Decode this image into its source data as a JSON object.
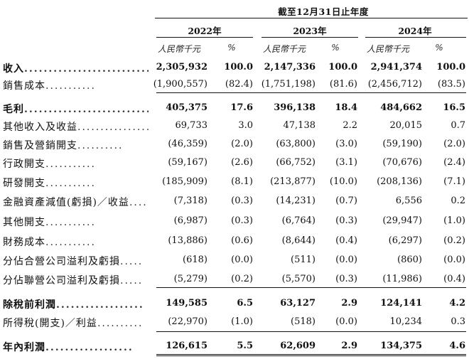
{
  "header": {
    "period": "截至12月31日止年度",
    "years": [
      "2022年",
      "2023年",
      "2024年"
    ],
    "unit": "人民幣千元",
    "pct": "%"
  },
  "rows": [
    {
      "label": "收入",
      "dots": "..........................",
      "bold": true,
      "v": [
        "2,305,932",
        "100.0",
        "2,147,336",
        "100.0",
        "2,941,374",
        "100.0"
      ]
    },
    {
      "label": "銷售成本",
      "dots": "...........",
      "bold": false,
      "v": [
        "(1,900,557)",
        "(82.4)",
        "(1,751,198)",
        "(81.6)",
        "(2,456,712)",
        "(83.5)"
      ]
    },
    {
      "label": "毛利",
      "dots": "..........................",
      "bold": true,
      "v": [
        "405,375",
        "17.6",
        "396,138",
        "18.4",
        "484,662",
        "16.5"
      ]
    },
    {
      "label": "其他收入及收益",
      "dots": "................",
      "bold": false,
      "v": [
        "69,733",
        "3.0",
        "47,138",
        "2.2",
        "20,015",
        "0.7"
      ]
    },
    {
      "label": "銷售及營銷開支",
      "dots": "..........",
      "bold": false,
      "v": [
        "(46,359)",
        "(2.0)",
        "(63,800)",
        "(3.0)",
        "(59,190)",
        "(2.0)"
      ]
    },
    {
      "label": "行政開支",
      "dots": "...........",
      "bold": false,
      "v": [
        "(59,167)",
        "(2.6)",
        "(66,752)",
        "(3.1)",
        "(70,676)",
        "(2.4)"
      ]
    },
    {
      "label": "研發開支",
      "dots": "...........",
      "bold": false,
      "v": [
        "(185,909)",
        "(8.1)",
        "(213,877)",
        "(10.0)",
        "(208,136)",
        "(7.1)"
      ]
    },
    {
      "label": "金融資產減值(虧損)／收益",
      "dots": "....",
      "bold": false,
      "v": [
        "(7,318)",
        "(0.3)",
        "(14,231)",
        "(0.7)",
        "6,556",
        "0.2"
      ]
    },
    {
      "label": "其他開支",
      "dots": "...........",
      "bold": false,
      "v": [
        "(6,987)",
        "(0.3)",
        "(6,764)",
        "(0.3)",
        "(29,947)",
        "(1.0)"
      ]
    },
    {
      "label": "財務成本",
      "dots": "...........",
      "bold": false,
      "v": [
        "(13,886)",
        "(0.6)",
        "(8,644)",
        "(0.4)",
        "(6,297)",
        "(0.2)"
      ]
    },
    {
      "label": "分佔合營公司溢利及虧損",
      "dots": ".....",
      "bold": false,
      "v": [
        "(618)",
        "(0.0)",
        "(511)",
        "(0.0)",
        "(860)",
        "(0.0)"
      ]
    },
    {
      "label": "分佔聯營公司溢利及虧損",
      "dots": ".....",
      "bold": false,
      "v": [
        "(5,279)",
        "(0.2)",
        "(5,570)",
        "(0.3)",
        "(11,986)",
        "(0.4)"
      ]
    },
    {
      "label": "除稅前利潤",
      "dots": "..................",
      "bold": true,
      "v": [
        "149,585",
        "6.5",
        "63,127",
        "2.9",
        "124,141",
        "4.2"
      ]
    },
    {
      "label": "所得稅(開支)／利益",
      "dots": "..........",
      "bold": false,
      "v": [
        "(22,970)",
        "(1.0)",
        "(518)",
        "(0.0)",
        "10,234",
        "0.3"
      ]
    },
    {
      "label": "年內利潤",
      "dots": "..................",
      "bold": true,
      "v": [
        "126,615",
        "5.5",
        "62,609",
        "2.9",
        "134,375",
        "4.6"
      ]
    }
  ]
}
